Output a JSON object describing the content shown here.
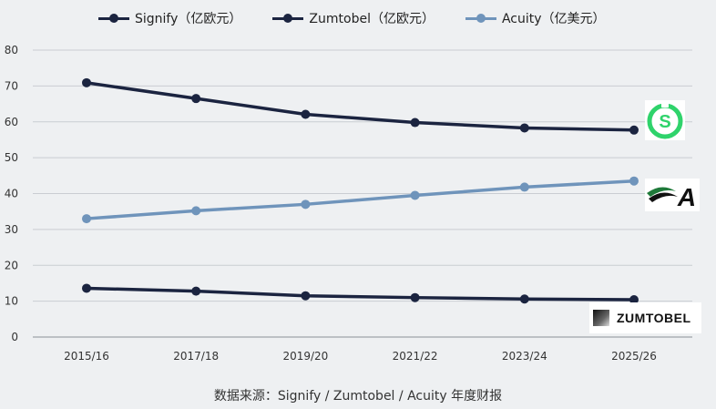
{
  "chart_data": {
    "type": "line",
    "categories": [
      "2015/16",
      "2017/18",
      "2019/20",
      "2021/22",
      "2023/24",
      "2025/26"
    ],
    "series": [
      {
        "name": "Signify（亿欧元）",
        "values": [
          70.9,
          66.5,
          62.1,
          59.8,
          58.3,
          57.7
        ],
        "color": "#1b2440"
      },
      {
        "name": "Zumtobel（亿欧元）",
        "values": [
          13.6,
          12.8,
          11.5,
          11.0,
          10.6,
          10.4
        ],
        "color": "#1b2440"
      },
      {
        "name": "Acuity（亿美元）",
        "values": [
          33.0,
          35.2,
          37.0,
          39.5,
          41.8,
          43.5
        ],
        "color": "#6f94bb"
      }
    ],
    "y_ticks": [
      "0",
      "10",
      "20",
      "30",
      "40",
      "50",
      "60",
      "70",
      "80"
    ],
    "ylim": [
      0,
      80
    ],
    "grid": true,
    "legend": "top",
    "title": "",
    "xlabel": "",
    "ylabel": ""
  },
  "source_text": "数据来源：Signify / Zumtobel / Acuity 年度财报",
  "logos": {
    "signify": {
      "icon": "signify-logo-icon",
      "color": "#2fd36b"
    },
    "acuity": {
      "icon": "acuity-logo-icon",
      "color": "#1f7a3a"
    },
    "zumtobel": {
      "icon": "zumtobel-logo-icon",
      "text": "ZUMTOBEL"
    }
  }
}
